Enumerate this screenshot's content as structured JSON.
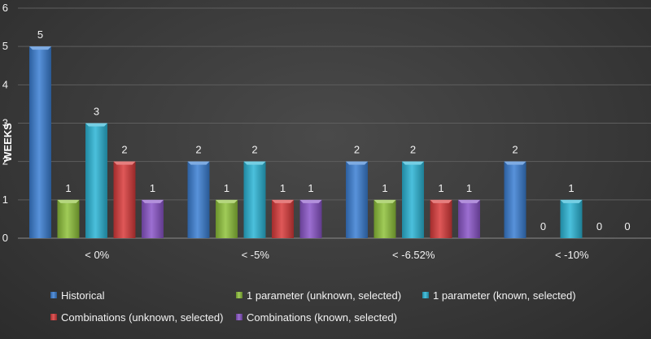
{
  "chart_data": {
    "type": "bar",
    "title": "",
    "xlabel": "",
    "ylabel": "WEEKS",
    "ylim": [
      0,
      6
    ],
    "yticks": [
      0,
      1,
      2,
      3,
      4,
      5,
      6
    ],
    "grid": true,
    "legend_position": "bottom",
    "categories": [
      "< 0%",
      "< -5%",
      "< -6.52%",
      "< -10%"
    ],
    "series": [
      {
        "name": "Historical",
        "color": "#3a7fd4",
        "values": [
          5,
          2,
          2,
          2
        ]
      },
      {
        "name": "1 parameter (unknown, selected)",
        "color": "#8fc23a",
        "values": [
          1,
          1,
          1,
          0
        ]
      },
      {
        "name": "1 parameter (known, selected)",
        "color": "#2bb5d6",
        "values": [
          3,
          2,
          2,
          1
        ]
      },
      {
        "name": "Combinations (unknown, selected)",
        "color": "#d93a3a",
        "values": [
          2,
          1,
          1,
          0
        ]
      },
      {
        "name": "Combinations (known, selected)",
        "color": "#8a55c9",
        "values": [
          1,
          1,
          1,
          0
        ]
      }
    ]
  }
}
